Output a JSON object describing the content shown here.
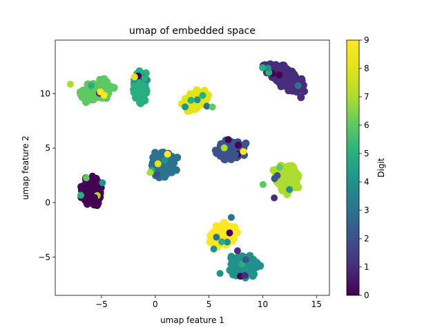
{
  "chart_data": {
    "type": "scatter",
    "title": "umap of embedded space",
    "xlabel": "umap feature 1",
    "ylabel": "umap feature 2",
    "xlim": [
      -9.3,
      16.2
    ],
    "ylim": [
      -8.5,
      14.9
    ],
    "x_ticks": [
      -5,
      0,
      5,
      10,
      15
    ],
    "y_ticks": [
      -5,
      0,
      5,
      10
    ],
    "grid": false,
    "colormap": "viridis",
    "colorbar": {
      "label": "Digit",
      "range": [
        0,
        9
      ],
      "ticks": [
        0,
        1,
        2,
        3,
        4,
        5,
        6,
        7,
        8,
        9
      ]
    },
    "clusters": [
      {
        "digit": 0,
        "center": [
          -5.9,
          1.0
        ],
        "spread": [
          1.3,
          1.7
        ],
        "tilt": 0
      },
      {
        "digit": 1,
        "center": [
          12.0,
          11.5
        ],
        "spread": [
          3.0,
          1.2
        ],
        "tilt": -35
      },
      {
        "digit": 2,
        "center": [
          7.0,
          4.8
        ],
        "spread": [
          1.8,
          1.3
        ],
        "tilt": 10
      },
      {
        "digit": 3,
        "center": [
          0.8,
          3.5
        ],
        "spread": [
          1.6,
          1.6
        ],
        "tilt": 0
      },
      {
        "digit": 4,
        "center": [
          8.2,
          -5.8
        ],
        "spread": [
          2.0,
          1.5
        ],
        "tilt": 0
      },
      {
        "digit": 5,
        "center": [
          -1.4,
          10.6
        ],
        "spread": [
          0.9,
          2.0
        ],
        "tilt": 0
      },
      {
        "digit": 6,
        "center": [
          -5.5,
          10.2
        ],
        "spread": [
          2.2,
          1.1
        ],
        "tilt": 15
      },
      {
        "digit": 7,
        "center": [
          12.3,
          2.3
        ],
        "spread": [
          1.6,
          1.8
        ],
        "tilt": 30
      },
      {
        "digit": 8,
        "center": [
          3.8,
          9.4
        ],
        "spread": [
          1.7,
          1.0
        ],
        "tilt": 35
      },
      {
        "digit": 9,
        "center": [
          6.4,
          -3.0
        ],
        "spread": [
          2.0,
          1.4
        ],
        "tilt": 20
      }
    ]
  }
}
